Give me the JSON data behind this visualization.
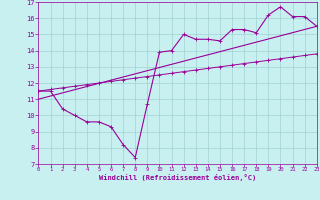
{
  "xlabel": "Windchill (Refroidissement éolien,°C)",
  "bg_color": "#c8f0f0",
  "line_color": "#990099",
  "grid_color": "#99cccc",
  "xmin": 0,
  "xmax": 23,
  "ymin": 7,
  "ymax": 17,
  "xticks": [
    0,
    1,
    2,
    3,
    4,
    5,
    6,
    7,
    8,
    9,
    10,
    11,
    12,
    13,
    14,
    15,
    16,
    17,
    18,
    19,
    20,
    21,
    22,
    23
  ],
  "yticks": [
    7,
    8,
    9,
    10,
    11,
    12,
    13,
    14,
    15,
    16,
    17
  ],
  "line1_x": [
    0,
    1,
    2,
    3,
    4,
    5,
    6,
    7,
    8,
    9,
    10,
    11,
    12,
    13,
    14,
    15,
    16,
    17,
    18,
    19,
    20,
    21,
    22,
    23
  ],
  "line1_y": [
    11.5,
    11.5,
    10.4,
    10.0,
    9.6,
    9.6,
    9.3,
    8.2,
    7.4,
    10.7,
    13.9,
    14.0,
    15.0,
    14.7,
    14.7,
    14.6,
    15.3,
    15.3,
    15.1,
    16.2,
    16.7,
    16.1,
    16.1,
    15.5
  ],
  "line2_x": [
    0,
    1,
    2,
    3,
    4,
    5,
    6,
    7,
    8,
    9,
    10,
    11,
    12,
    13,
    14,
    15,
    16,
    17,
    18,
    19,
    20,
    21,
    22,
    23
  ],
  "line2_y": [
    11.5,
    11.6,
    11.7,
    11.8,
    11.9,
    12.0,
    12.1,
    12.2,
    12.3,
    12.4,
    12.5,
    12.6,
    12.7,
    12.8,
    12.9,
    13.0,
    13.1,
    13.2,
    13.3,
    13.4,
    13.5,
    13.6,
    13.7,
    13.8
  ],
  "line3_x": [
    0,
    23
  ],
  "line3_y": [
    11.0,
    15.5
  ]
}
